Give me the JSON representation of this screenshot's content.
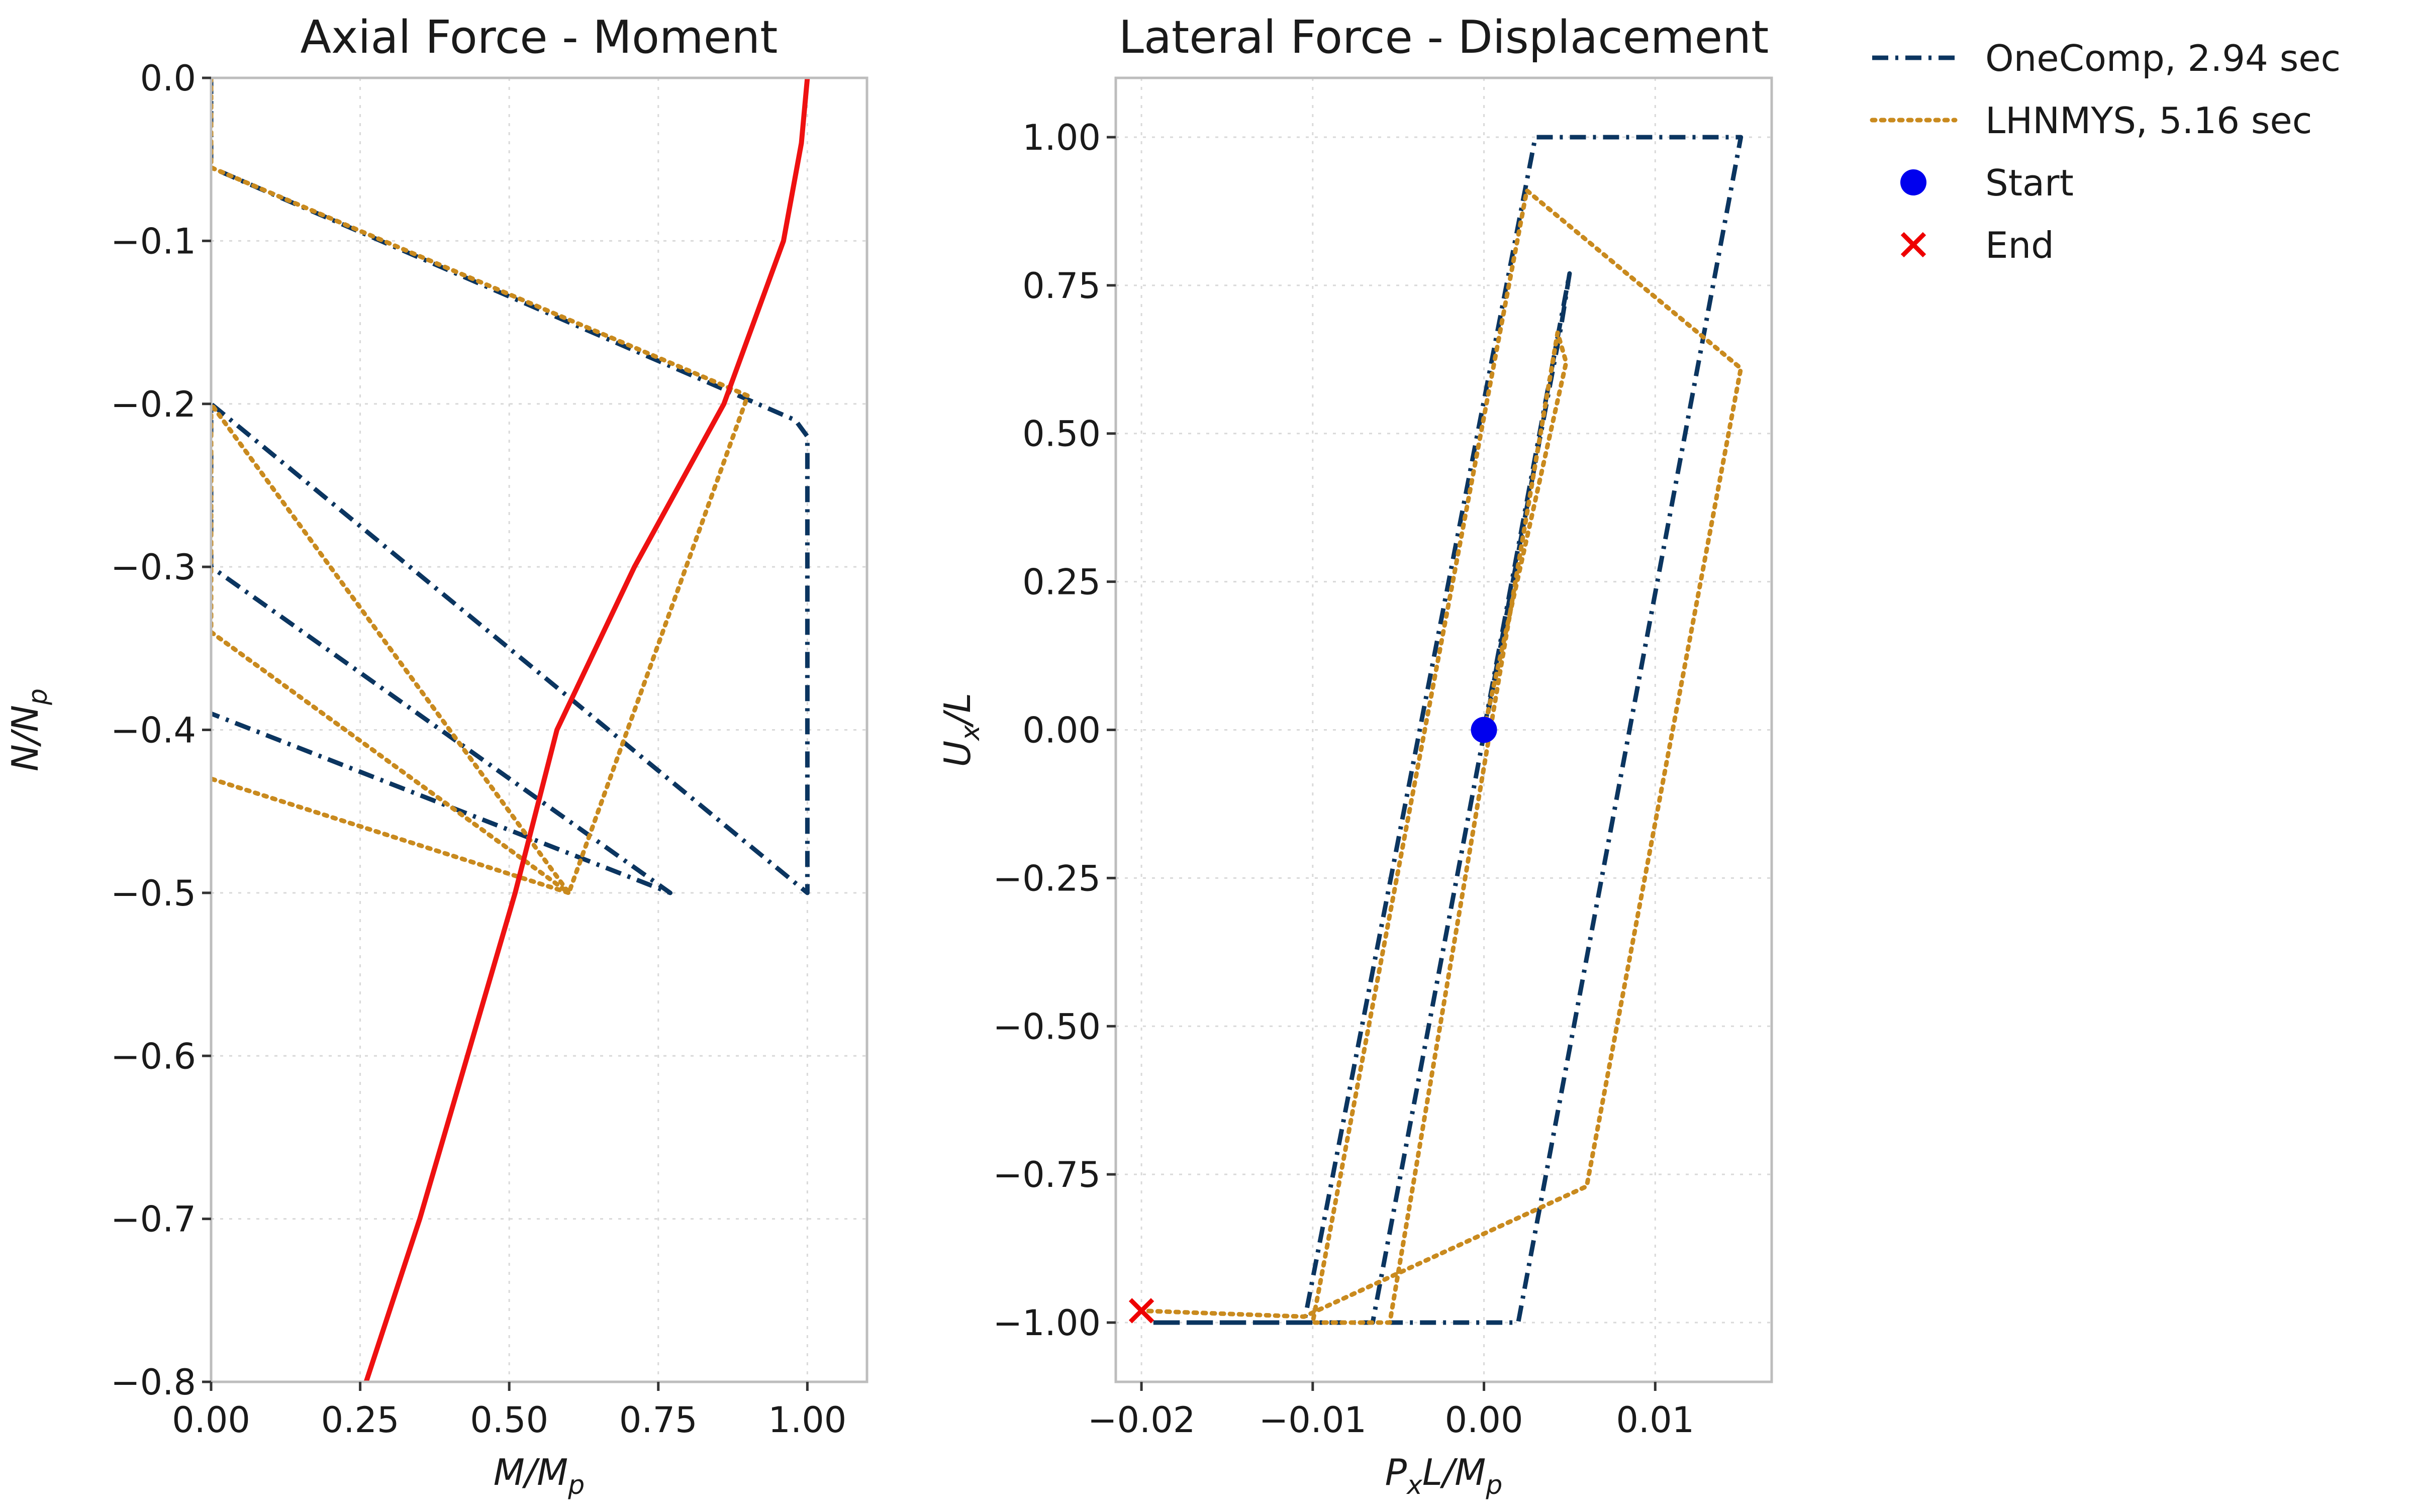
{
  "legend": {
    "items": [
      {
        "label": "OneComp, 2.94 sec",
        "kind": "line",
        "color": "#0b3560",
        "style": "dashdot"
      },
      {
        "label": "LHNMYS, 5.16 sec",
        "kind": "line",
        "color": "#c98a1e",
        "style": "dotted"
      },
      {
        "label": "Start",
        "kind": "circle",
        "color": "#0000ee"
      },
      {
        "label": "End",
        "kind": "x",
        "color": "#ee0000"
      }
    ]
  },
  "chart_data": [
    {
      "type": "line",
      "title": "Axial Force - Moment",
      "xlabel": "M/Mp",
      "ylabel": "N/Np",
      "xlim": [
        0.0,
        1.1
      ],
      "ylim": [
        -0.8,
        0.0
      ],
      "xticks": [
        0.0,
        0.25,
        0.5,
        0.75,
        1.0
      ],
      "xtick_labels": [
        "0.00",
        "0.25",
        "0.50",
        "0.75",
        "1.00"
      ],
      "yticks": [
        0.0,
        -0.1,
        -0.2,
        -0.3,
        -0.4,
        -0.5,
        -0.6,
        -0.7,
        -0.8
      ],
      "ytick_labels": [
        "0.0",
        "−0.1",
        "−0.2",
        "−0.3",
        "−0.4",
        "−0.5",
        "−0.6",
        "−0.7",
        "−0.8"
      ],
      "grid": true,
      "series": [
        {
          "name": "OneComp, 2.94 sec",
          "color": "#0b3560",
          "style": "dashdot",
          "points": [
            [
              0.0,
              0.0
            ],
            [
              0.0,
              -0.055
            ],
            [
              0.98,
              -0.21
            ],
            [
              1.0,
              -0.22
            ],
            [
              1.0,
              -0.5
            ],
            [
              0.0,
              -0.2
            ],
            [
              0.0,
              -0.3
            ],
            [
              0.77,
              -0.5
            ],
            [
              0.0,
              -0.39
            ]
          ]
        },
        {
          "name": "LHNMYS, 5.16 sec",
          "color": "#c98a1e",
          "style": "dotted",
          "points": [
            [
              0.0,
              0.0
            ],
            [
              0.0,
              -0.055
            ],
            [
              0.9,
              -0.195
            ],
            [
              0.6,
              -0.5
            ],
            [
              0.0,
              -0.2
            ],
            [
              0.0,
              -0.34
            ],
            [
              0.6,
              -0.5
            ],
            [
              0.0,
              -0.43
            ]
          ]
        },
        {
          "name": "",
          "color": "#ee1111",
          "style": "solid",
          "points": [
            [
              0.26,
              -0.8
            ],
            [
              0.35,
              -0.7
            ],
            [
              0.43,
              -0.6
            ],
            [
              0.51,
              -0.5
            ],
            [
              0.58,
              -0.4
            ],
            [
              0.71,
              -0.3
            ],
            [
              0.86,
              -0.2
            ],
            [
              0.96,
              -0.1
            ],
            [
              0.99,
              -0.04
            ],
            [
              1.0,
              0.0
            ]
          ]
        }
      ]
    },
    {
      "type": "line",
      "title": "Lateral Force - Displacement",
      "xlabel": "PxL/Mp",
      "ylabel": "Ux/L",
      "xlim": [
        -0.0215,
        0.0168
      ],
      "ylim": [
        -1.1,
        1.1
      ],
      "xticks": [
        -0.02,
        -0.01,
        0.0,
        0.01
      ],
      "xtick_labels": [
        "−0.02",
        "−0.01",
        "0.00",
        "0.01"
      ],
      "yticks": [
        1.0,
        0.75,
        0.5,
        0.25,
        0.0,
        -0.25,
        -0.5,
        -0.75,
        -1.0
      ],
      "ytick_labels": [
        "1.00",
        "0.75",
        "0.50",
        "0.25",
        "0.00",
        "−0.25",
        "−0.50",
        "−0.75",
        "−1.00"
      ],
      "grid": true,
      "series": [
        {
          "name": "OneComp, 2.94 sec",
          "color": "#0b3560",
          "style": "dashdot",
          "points": [
            [
              0.0,
              0.0
            ],
            [
              0.005,
              0.77
            ],
            [
              0.0045,
              0.68
            ],
            [
              -0.0065,
              -1.0
            ],
            [
              -0.0195,
              -1.0
            ],
            [
              -0.0105,
              -1.0
            ],
            [
              0.003,
              1.0
            ],
            [
              0.015,
              1.0
            ],
            [
              0.002,
              -1.0
            ],
            [
              -0.0055,
              -1.0
            ]
          ]
        },
        {
          "name": "LHNMYS, 5.16 sec",
          "color": "#c98a1e",
          "style": "dotted",
          "points": [
            [
              0.0,
              0.0
            ],
            [
              0.0048,
              0.62
            ],
            [
              0.0043,
              0.67
            ],
            [
              -0.0055,
              -1.0
            ],
            [
              -0.01,
              -1.0
            ],
            [
              0.0025,
              0.91
            ],
            [
              0.015,
              0.61
            ],
            [
              0.006,
              -0.77
            ],
            [
              -0.0105,
              -0.99
            ],
            [
              -0.02,
              -0.98
            ]
          ]
        }
      ],
      "markers": [
        {
          "name": "Start",
          "x": 0.0,
          "y": 0.0,
          "shape": "circle",
          "color": "#0000ee"
        },
        {
          "name": "End",
          "x": -0.02,
          "y": -0.98,
          "shape": "x",
          "color": "#ee0000"
        }
      ]
    }
  ]
}
